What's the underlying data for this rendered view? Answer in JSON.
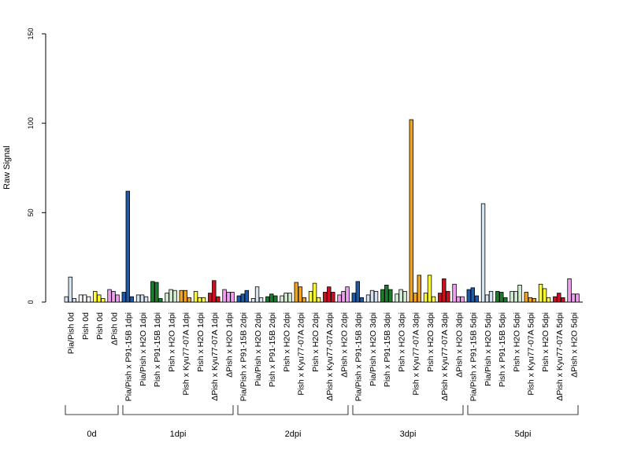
{
  "chart_data": {
    "type": "bar",
    "title": "",
    "xlabel": "",
    "ylabel": "Raw Signal",
    "ylim": [
      0,
      150
    ],
    "yticks": [
      "0",
      "50",
      "100",
      "150"
    ],
    "grid": false,
    "legend": "none",
    "categories": [
      "Pia/Pish 0d",
      "Pish 0d",
      "Pish 0d",
      "ΔPish 0d",
      "Pia/Pish x P91-15B 1dpi",
      "Pia/Pish x H2O 1dpi",
      "Pish x P91-15B 1dpi",
      "Pish x H2O 1dpi",
      "Pish x Kyu77-07A 1dpi",
      "Pish x H2O 1dpi",
      "ΔPish x Kyu77-07A 1dpi",
      "ΔPish x H2O 1dpi",
      "Pia/Pish x P91-15B 2dpi",
      "Pia/Pish x H2O 2dpi",
      "Pish x P91-15B 2dpi",
      "Pish x H2O 2dpi",
      "Pish x Kyu77-07A 2dpi",
      "Pish x H2O 2dpi",
      "ΔPish x Kyu77-07A 2dpi",
      "ΔPish x H2O 2dpi",
      "Pia/Pish x P91-15B 3dpi",
      "Pia/Pish x H2O 3dpi",
      "Pish x P91-15B 3dpi",
      "Pish x H2O 3dpi",
      "Pish x Kyu77-07A 3dpi",
      "Pish x H2O 3dpi",
      "ΔPish x Kyu77-07A 3dpi",
      "ΔPish x H2O 3dpi",
      "Pia/Pish x P91-15B 5dpi",
      "Pia/Pish x H2O 5dpi",
      "Pish x P91-15B 5dpi",
      "Pish x H2O 5dpi",
      "Pish x Kyu77-07A 5dpi",
      "Pish x H2O 5dpi",
      "ΔPish x Kyu77-07A 5dpi",
      "ΔPish x H2O 5dpi"
    ],
    "colors": [
      "#d6e4f2",
      "#ffffff",
      "#ffff33",
      "#f0a0f0",
      "#1f5aa6",
      "#d6e4f2",
      "#1e7b2e",
      "#d2ecd0",
      "#f2a31a",
      "#ffff33",
      "#cc1020",
      "#f0a0f0",
      "#1f5aa6",
      "#d6e4f2",
      "#1e7b2e",
      "#d2ecd0",
      "#f2a31a",
      "#ffff33",
      "#cc1020",
      "#f0a0f0",
      "#1f5aa6",
      "#d6e4f2",
      "#1e7b2e",
      "#d2ecd0",
      "#f2a31a",
      "#ffff33",
      "#cc1020",
      "#f0a0f0",
      "#1f5aa6",
      "#d6e4f2",
      "#1e7b2e",
      "#d2ecd0",
      "#f2a31a",
      "#ffff33",
      "#cc1020",
      "#f0a0f0"
    ],
    "replicates": [
      [
        3,
        14,
        2
      ],
      [
        4,
        4,
        3
      ],
      [
        6,
        4,
        2
      ],
      [
        7,
        6,
        4
      ],
      [
        5.5,
        62,
        3
      ],
      [
        4,
        4,
        3
      ],
      [
        11.5,
        11,
        2
      ],
      [
        5,
        7,
        6.5
      ],
      [
        6.5,
        6.5,
        2.5
      ],
      [
        6,
        2.5,
        2.5
      ],
      [
        5,
        12,
        3
      ],
      [
        7,
        5.5,
        5.5
      ],
      [
        3.5,
        4.5,
        6.5
      ],
      [
        2,
        8.5,
        2.5
      ],
      [
        3,
        4.5,
        3.5
      ],
      [
        3.5,
        5,
        5
      ],
      [
        11,
        8.5,
        2.5
      ],
      [
        6,
        10.5,
        2.5
      ],
      [
        5.5,
        8.5,
        5.5
      ],
      [
        4,
        6,
        8.5
      ],
      [
        5,
        11.5,
        2.5
      ],
      [
        4,
        6.5,
        6
      ],
      [
        7,
        9.5,
        7
      ],
      [
        4.5,
        7,
        6
      ],
      [
        102,
        5,
        15
      ],
      [
        5,
        15,
        3
      ],
      [
        5,
        13,
        6
      ],
      [
        10,
        3,
        3
      ],
      [
        7,
        8,
        3.5
      ],
      [
        55,
        4,
        6
      ],
      [
        6,
        5.5,
        2.5
      ],
      [
        6,
        6,
        9.5
      ],
      [
        5.5,
        2.5,
        2
      ],
      [
        10,
        7.5,
        2.5
      ],
      [
        3,
        5,
        2.5
      ],
      [
        13,
        4.5,
        4.5
      ]
    ],
    "groups": [
      {
        "label": "0d",
        "count": 4
      },
      {
        "label": "1dpi",
        "count": 8
      },
      {
        "label": "2dpi",
        "count": 8
      },
      {
        "label": "3dpi",
        "count": 8
      },
      {
        "label": "5dpi",
        "count": 8
      }
    ]
  }
}
